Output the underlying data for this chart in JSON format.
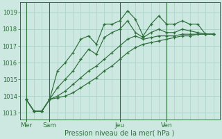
{
  "xlabel": "Pression niveau de la mer( hPa )",
  "bg_color": "#cce8e0",
  "grid_major_color": "#aad0c8",
  "grid_minor_color": "#bbdcd6",
  "line_color": "#2d6e3a",
  "ylim": [
    1012.6,
    1019.6
  ],
  "yticks": [
    1013,
    1014,
    1015,
    1016,
    1017,
    1018,
    1019
  ],
  "day_labels": [
    "Mer",
    "Sam",
    "Jeu",
    "Ven"
  ],
  "n_points": 25,
  "x_values": [
    0,
    1,
    2,
    3,
    4,
    5,
    6,
    7,
    8,
    9,
    10,
    11,
    12,
    13,
    14,
    15,
    16,
    17,
    18,
    19,
    20,
    21,
    22,
    23,
    24
  ],
  "series1": [
    1013.8,
    1013.1,
    1013.1,
    1013.8,
    1015.5,
    1016.0,
    1016.6,
    1017.4,
    1017.6,
    1017.1,
    1018.3,
    1018.3,
    1018.5,
    1019.1,
    1018.6,
    1017.6,
    1018.3,
    1018.8,
    1018.3,
    1018.3,
    1018.5,
    1018.3,
    1018.3,
    1017.7,
    1017.7
  ],
  "series2": [
    1013.8,
    1013.1,
    1013.1,
    1013.8,
    1014.5,
    1015.0,
    1015.5,
    1016.2,
    1016.8,
    1016.5,
    1017.5,
    1017.8,
    1018.0,
    1018.5,
    1017.8,
    1017.5,
    1017.8,
    1018.0,
    1017.8,
    1017.8,
    1018.0,
    1017.9,
    1017.8,
    1017.7,
    1017.7
  ],
  "series3": [
    1013.8,
    1013.1,
    1013.1,
    1013.8,
    1014.0,
    1014.3,
    1014.7,
    1015.1,
    1015.5,
    1015.8,
    1016.2,
    1016.6,
    1017.0,
    1017.4,
    1017.6,
    1017.4,
    1017.5,
    1017.6,
    1017.6,
    1017.6,
    1017.7,
    1017.7,
    1017.7,
    1017.7,
    1017.7
  ],
  "series4": [
    1013.8,
    1013.1,
    1013.1,
    1013.8,
    1013.9,
    1014.0,
    1014.2,
    1014.5,
    1014.8,
    1015.1,
    1015.5,
    1015.8,
    1016.2,
    1016.6,
    1016.9,
    1017.1,
    1017.2,
    1017.3,
    1017.4,
    1017.5,
    1017.6,
    1017.6,
    1017.7,
    1017.7,
    1017.7
  ]
}
